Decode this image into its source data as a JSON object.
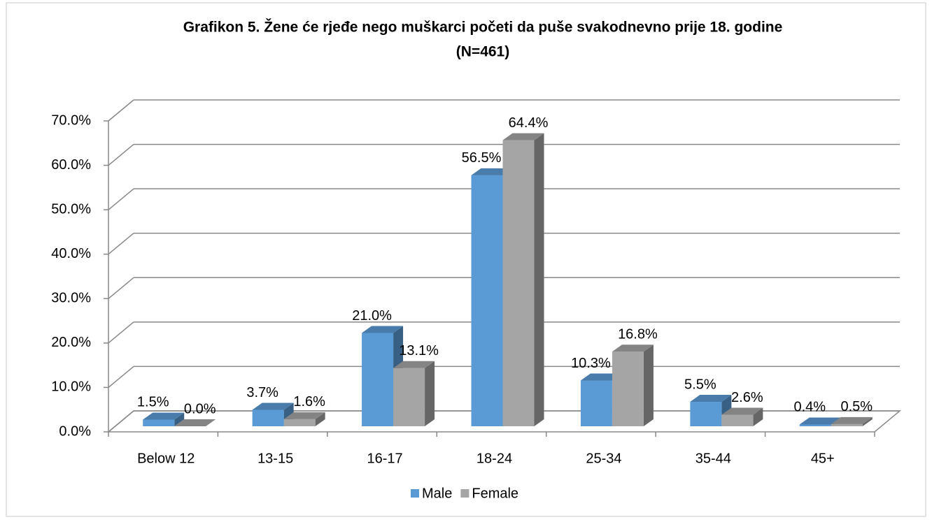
{
  "chart_data": {
    "type": "bar3d",
    "title": "Grafikon 5. Žene će rjeđe nego muškarci početi da puše svakodnevno prije 18. godine",
    "subtitle": "(N=461)",
    "categories": [
      "Below 12",
      "13-15",
      "16-17",
      "18-24",
      "25-34",
      "35-44",
      "45+"
    ],
    "series": [
      {
        "name": "Male",
        "color": "#5b9bd5",
        "values": [
          1.5,
          3.7,
          21.0,
          56.5,
          10.3,
          5.5,
          0.4
        ],
        "value_labels": [
          "1.5%",
          "3.7%",
          "21.0%",
          "56.5%",
          "10.3%",
          "5.5%",
          "0.4%"
        ]
      },
      {
        "name": "Female",
        "color": "#a5a5a5",
        "values": [
          0.0,
          1.6,
          13.1,
          64.4,
          16.8,
          2.6,
          0.5
        ],
        "value_labels": [
          "0.0%",
          "1.6%",
          "13.1%",
          "64.4%",
          "16.8%",
          "2.6%",
          "0.5%"
        ]
      }
    ],
    "ylim": [
      0,
      70
    ],
    "yticks": [
      {
        "value": 0,
        "label": "0.0%"
      },
      {
        "value": 10,
        "label": "10.0%"
      },
      {
        "value": 20,
        "label": "20.0%"
      },
      {
        "value": 30,
        "label": "30.0%"
      },
      {
        "value": 40,
        "label": "40.0%"
      },
      {
        "value": 50,
        "label": "50.0%"
      },
      {
        "value": 60,
        "label": "60.0%"
      },
      {
        "value": 70,
        "label": "70.0%"
      }
    ],
    "grid": true,
    "legend": "bottom"
  }
}
